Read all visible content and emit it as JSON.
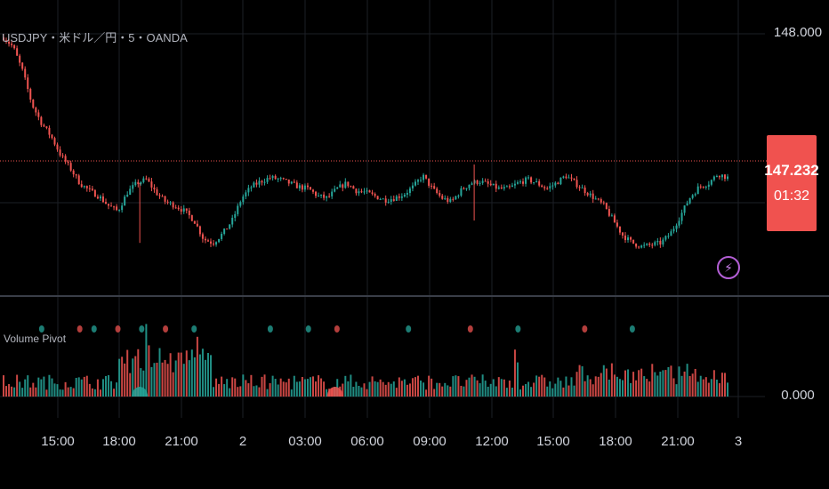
{
  "symbol_title": "USDJPY・米ドル／円・5・OANDA",
  "indicator_title": "Volume Pivot",
  "price_axis": {
    "top_label": "148.000",
    "volume_label": "0.000"
  },
  "current_price": {
    "value": "147.232",
    "countdown": "01:32"
  },
  "colors": {
    "up": "#26a69a",
    "down": "#ef5350",
    "current_box": "#f0524f",
    "alert_icon": "#b45fd6"
  },
  "alert_icon": "lightning-icon",
  "chart_data": {
    "type": "candlestick",
    "x_tick_labels": [
      "15:00",
      "18:00",
      "21:00",
      "2",
      "03:00",
      "06:00",
      "09:00",
      "12:00",
      "15:00",
      "18:00",
      "21:00",
      "3"
    ],
    "price_ylim": [
      146.8,
      148.0
    ],
    "price_path": [
      [
        0,
        147.98
      ],
      [
        1,
        147.93
      ],
      [
        2,
        147.8
      ],
      [
        3,
        147.62
      ],
      [
        4,
        147.52
      ],
      [
        5,
        147.45
      ],
      [
        6,
        147.35
      ],
      [
        7,
        147.28
      ],
      [
        8,
        147.2
      ],
      [
        9,
        147.16
      ],
      [
        10,
        147.13
      ],
      [
        11,
        147.08
      ],
      [
        12,
        147.05
      ],
      [
        13,
        147.15
      ],
      [
        14,
        147.2
      ],
      [
        15,
        147.22
      ],
      [
        16,
        147.15
      ],
      [
        17,
        147.1
      ],
      [
        18,
        147.08
      ],
      [
        19,
        147.05
      ],
      [
        20,
        147.0
      ],
      [
        21,
        146.9
      ],
      [
        22,
        146.88
      ],
      [
        23,
        146.93
      ],
      [
        24,
        147.0
      ],
      [
        25,
        147.12
      ],
      [
        26,
        147.18
      ],
      [
        27,
        147.21
      ],
      [
        28,
        147.23
      ],
      [
        29,
        147.22
      ],
      [
        30,
        147.2
      ],
      [
        31,
        147.18
      ],
      [
        32,
        147.17
      ],
      [
        33,
        147.13
      ],
      [
        34,
        147.12
      ],
      [
        35,
        147.17
      ],
      [
        36,
        147.2
      ],
      [
        37,
        147.16
      ],
      [
        38,
        147.15
      ],
      [
        39,
        147.13
      ],
      [
        40,
        147.11
      ],
      [
        41,
        147.12
      ],
      [
        42,
        147.14
      ],
      [
        43,
        147.18
      ],
      [
        44,
        147.24
      ],
      [
        45,
        147.17
      ],
      [
        46,
        147.12
      ],
      [
        47,
        147.1
      ],
      [
        48,
        147.16
      ],
      [
        49,
        147.2
      ],
      [
        50,
        147.21
      ],
      [
        51,
        147.19
      ],
      [
        52,
        147.17
      ],
      [
        53,
        147.17
      ],
      [
        54,
        147.2
      ],
      [
        55,
        147.22
      ],
      [
        56,
        147.2
      ],
      [
        57,
        147.17
      ],
      [
        58,
        147.2
      ],
      [
        59,
        147.24
      ],
      [
        60,
        147.2
      ],
      [
        61,
        147.16
      ],
      [
        62,
        147.12
      ],
      [
        63,
        147.08
      ],
      [
        64,
        147.0
      ],
      [
        65,
        146.92
      ],
      [
        66,
        146.88
      ],
      [
        67,
        146.86
      ],
      [
        68,
        146.87
      ],
      [
        69,
        146.88
      ],
      [
        70,
        146.93
      ],
      [
        71,
        147.02
      ],
      [
        72,
        147.12
      ],
      [
        73,
        147.18
      ],
      [
        74,
        147.2
      ],
      [
        75,
        147.25
      ],
      [
        76,
        147.23
      ]
    ],
    "volume_pivots": [
      {
        "x": 4,
        "kind": "up"
      },
      {
        "x": 8,
        "kind": "down"
      },
      {
        "x": 9.5,
        "kind": "up"
      },
      {
        "x": 12,
        "kind": "down"
      },
      {
        "x": 14.5,
        "kind": "up"
      },
      {
        "x": 17,
        "kind": "down"
      },
      {
        "x": 20,
        "kind": "up"
      },
      {
        "x": 28,
        "kind": "up"
      },
      {
        "x": 32,
        "kind": "up"
      },
      {
        "x": 35,
        "kind": "down"
      },
      {
        "x": 42.5,
        "kind": "up"
      },
      {
        "x": 49,
        "kind": "down"
      },
      {
        "x": 54,
        "kind": "up"
      },
      {
        "x": 61,
        "kind": "down"
      },
      {
        "x": 66,
        "kind": "up"
      }
    ],
    "volume_markers": [
      {
        "x": 14.3,
        "kind": "up"
      },
      {
        "x": 34.8,
        "kind": "down"
      }
    ],
    "volume_ylim": [
      0,
      1
    ]
  }
}
